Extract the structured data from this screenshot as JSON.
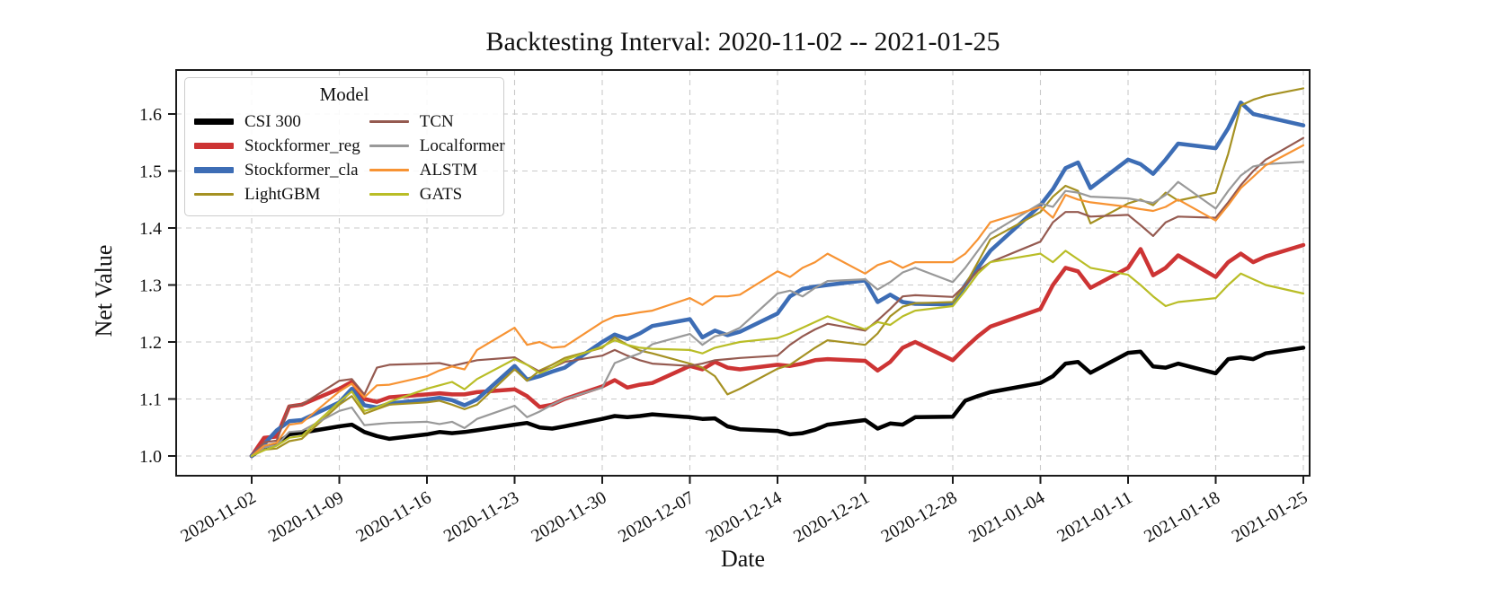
{
  "chart_data": {
    "type": "line",
    "title": "Backtesting Interval: 2020-11-02 -- 2021-01-25",
    "xlabel": "Date",
    "ylabel": "Net Value",
    "legend_title": "Model",
    "grid": true,
    "legend_position": "upper-left",
    "ylim": [
      0.965,
      1.677
    ],
    "y_ticks": [
      1.0,
      1.1,
      1.2,
      1.3,
      1.4,
      1.5,
      1.6
    ],
    "x_tick_labels": [
      "2020-11-02",
      "2020-11-09",
      "2020-11-16",
      "2020-11-23",
      "2020-11-30",
      "2020-12-07",
      "2020-12-14",
      "2020-12-21",
      "2020-12-28",
      "2021-01-04",
      "2021-01-11",
      "2021-01-18",
      "2021-01-25"
    ],
    "x_tick_day_offsets": [
      0,
      7,
      14,
      21,
      28,
      35,
      42,
      49,
      56,
      63,
      70,
      77,
      84
    ],
    "x_day_offsets": [
      0,
      1,
      2,
      3,
      4,
      7,
      8,
      9,
      10,
      11,
      14,
      15,
      16,
      17,
      18,
      21,
      22,
      23,
      24,
      25,
      28,
      29,
      30,
      31,
      32,
      35,
      36,
      37,
      38,
      39,
      42,
      43,
      44,
      45,
      46,
      49,
      50,
      51,
      52,
      53,
      56,
      57,
      58,
      59,
      63,
      64,
      65,
      66,
      67,
      70,
      71,
      72,
      73,
      74,
      77,
      78,
      79,
      80,
      81,
      84
    ],
    "series": [
      {
        "name": "CSI 300",
        "color": "#000000",
        "line_width": 4.5,
        "values": [
          1.0,
          1.016,
          1.021,
          1.038,
          1.041,
          1.052,
          1.055,
          1.042,
          1.035,
          1.03,
          1.038,
          1.042,
          1.04,
          1.042,
          1.045,
          1.055,
          1.058,
          1.05,
          1.048,
          1.052,
          1.065,
          1.07,
          1.068,
          1.07,
          1.073,
          1.068,
          1.065,
          1.066,
          1.052,
          1.047,
          1.044,
          1.038,
          1.04,
          1.046,
          1.055,
          1.063,
          1.048,
          1.057,
          1.055,
          1.068,
          1.069,
          1.097,
          1.105,
          1.112,
          1.128,
          1.14,
          1.162,
          1.165,
          1.146,
          1.181,
          1.183,
          1.157,
          1.155,
          1.162,
          1.145,
          1.17,
          1.173,
          1.17,
          1.18,
          1.19
        ]
      },
      {
        "name": "Stockformer_reg",
        "color": "#cd3434",
        "line_width": 4.5,
        "values": [
          1.0,
          1.032,
          1.034,
          1.087,
          1.09,
          1.118,
          1.13,
          1.1,
          1.095,
          1.103,
          1.108,
          1.11,
          1.108,
          1.108,
          1.112,
          1.117,
          1.105,
          1.086,
          1.09,
          1.1,
          1.122,
          1.133,
          1.12,
          1.125,
          1.128,
          1.158,
          1.152,
          1.165,
          1.155,
          1.152,
          1.16,
          1.158,
          1.162,
          1.168,
          1.17,
          1.167,
          1.15,
          1.165,
          1.19,
          1.2,
          1.168,
          1.19,
          1.21,
          1.227,
          1.258,
          1.3,
          1.33,
          1.324,
          1.295,
          1.33,
          1.363,
          1.317,
          1.33,
          1.352,
          1.314,
          1.34,
          1.355,
          1.34,
          1.35,
          1.37
        ]
      },
      {
        "name": "Stockformer_cla",
        "color": "#3d6db5",
        "line_width": 4.5,
        "values": [
          1.0,
          1.021,
          1.045,
          1.061,
          1.063,
          1.094,
          1.118,
          1.089,
          1.085,
          1.092,
          1.099,
          1.102,
          1.098,
          1.089,
          1.099,
          1.158,
          1.134,
          1.14,
          1.148,
          1.155,
          1.2,
          1.213,
          1.205,
          1.215,
          1.228,
          1.24,
          1.208,
          1.22,
          1.212,
          1.218,
          1.25,
          1.28,
          1.293,
          1.297,
          1.3,
          1.308,
          1.27,
          1.283,
          1.27,
          1.267,
          1.266,
          1.3,
          1.33,
          1.36,
          1.44,
          1.468,
          1.505,
          1.515,
          1.47,
          1.52,
          1.512,
          1.495,
          1.52,
          1.548,
          1.54,
          1.575,
          1.62,
          1.6,
          1.595,
          1.58
        ]
      },
      {
        "name": "LightGBM",
        "color": "#a59122",
        "line_width": 2.2,
        "values": [
          1.0,
          1.011,
          1.013,
          1.026,
          1.03,
          1.09,
          1.105,
          1.074,
          1.082,
          1.09,
          1.094,
          1.097,
          1.09,
          1.082,
          1.09,
          1.152,
          1.132,
          1.15,
          1.16,
          1.172,
          1.19,
          1.208,
          1.195,
          1.185,
          1.18,
          1.162,
          1.155,
          1.14,
          1.108,
          1.118,
          1.153,
          1.16,
          1.175,
          1.19,
          1.203,
          1.195,
          1.215,
          1.245,
          1.262,
          1.268,
          1.27,
          1.3,
          1.34,
          1.38,
          1.428,
          1.455,
          1.474,
          1.465,
          1.408,
          1.443,
          1.45,
          1.44,
          1.462,
          1.448,
          1.462,
          1.53,
          1.615,
          1.625,
          1.632,
          1.645
        ]
      },
      {
        "name": "TCN",
        "color": "#955a50",
        "line_width": 2.2,
        "values": [
          1.0,
          1.024,
          1.027,
          1.088,
          1.09,
          1.132,
          1.135,
          1.108,
          1.155,
          1.16,
          1.162,
          1.163,
          1.158,
          1.163,
          1.168,
          1.173,
          1.16,
          1.148,
          1.155,
          1.165,
          1.176,
          1.186,
          1.176,
          1.168,
          1.162,
          1.158,
          1.162,
          1.168,
          1.17,
          1.172,
          1.176,
          1.195,
          1.21,
          1.222,
          1.232,
          1.22,
          1.238,
          1.258,
          1.28,
          1.282,
          1.279,
          1.3,
          1.325,
          1.34,
          1.376,
          1.41,
          1.428,
          1.428,
          1.42,
          1.423,
          1.405,
          1.386,
          1.41,
          1.42,
          1.418,
          1.445,
          1.475,
          1.5,
          1.52,
          1.558
        ]
      },
      {
        "name": "Localformer",
        "color": "#999999",
        "line_width": 2.2,
        "values": [
          1.0,
          1.015,
          1.019,
          1.042,
          1.044,
          1.079,
          1.085,
          1.054,
          1.056,
          1.058,
          1.06,
          1.056,
          1.06,
          1.049,
          1.065,
          1.088,
          1.068,
          1.078,
          1.09,
          1.1,
          1.12,
          1.163,
          1.172,
          1.18,
          1.196,
          1.214,
          1.195,
          1.21,
          1.215,
          1.225,
          1.285,
          1.29,
          1.28,
          1.295,
          1.307,
          1.31,
          1.292,
          1.305,
          1.322,
          1.33,
          1.305,
          1.33,
          1.36,
          1.39,
          1.443,
          1.437,
          1.465,
          1.462,
          1.455,
          1.452,
          1.448,
          1.444,
          1.458,
          1.481,
          1.434,
          1.465,
          1.492,
          1.508,
          1.512,
          1.516
        ]
      },
      {
        "name": "ALSTM",
        "color": "#f79333",
        "line_width": 2.2,
        "values": [
          1.0,
          1.018,
          1.023,
          1.055,
          1.058,
          1.113,
          1.127,
          1.103,
          1.124,
          1.125,
          1.14,
          1.15,
          1.157,
          1.152,
          1.186,
          1.225,
          1.195,
          1.2,
          1.19,
          1.192,
          1.235,
          1.245,
          1.248,
          1.252,
          1.255,
          1.277,
          1.265,
          1.28,
          1.28,
          1.283,
          1.324,
          1.314,
          1.33,
          1.34,
          1.355,
          1.32,
          1.335,
          1.342,
          1.33,
          1.34,
          1.34,
          1.355,
          1.38,
          1.41,
          1.437,
          1.418,
          1.458,
          1.45,
          1.445,
          1.437,
          1.433,
          1.43,
          1.437,
          1.45,
          1.413,
          1.44,
          1.47,
          1.49,
          1.51,
          1.545
        ]
      },
      {
        "name": "GATS",
        "color": "#b9bd26",
        "line_width": 2.2,
        "values": [
          1.0,
          1.01,
          1.018,
          1.032,
          1.035,
          1.095,
          1.113,
          1.079,
          1.085,
          1.095,
          1.118,
          1.124,
          1.13,
          1.117,
          1.135,
          1.17,
          1.16,
          1.145,
          1.155,
          1.168,
          1.192,
          1.203,
          1.195,
          1.19,
          1.188,
          1.186,
          1.18,
          1.19,
          1.195,
          1.2,
          1.207,
          1.215,
          1.225,
          1.235,
          1.245,
          1.222,
          1.235,
          1.23,
          1.245,
          1.255,
          1.263,
          1.29,
          1.32,
          1.34,
          1.355,
          1.34,
          1.36,
          1.345,
          1.33,
          1.318,
          1.3,
          1.28,
          1.263,
          1.27,
          1.277,
          1.3,
          1.32,
          1.31,
          1.3,
          1.285
        ]
      }
    ]
  }
}
